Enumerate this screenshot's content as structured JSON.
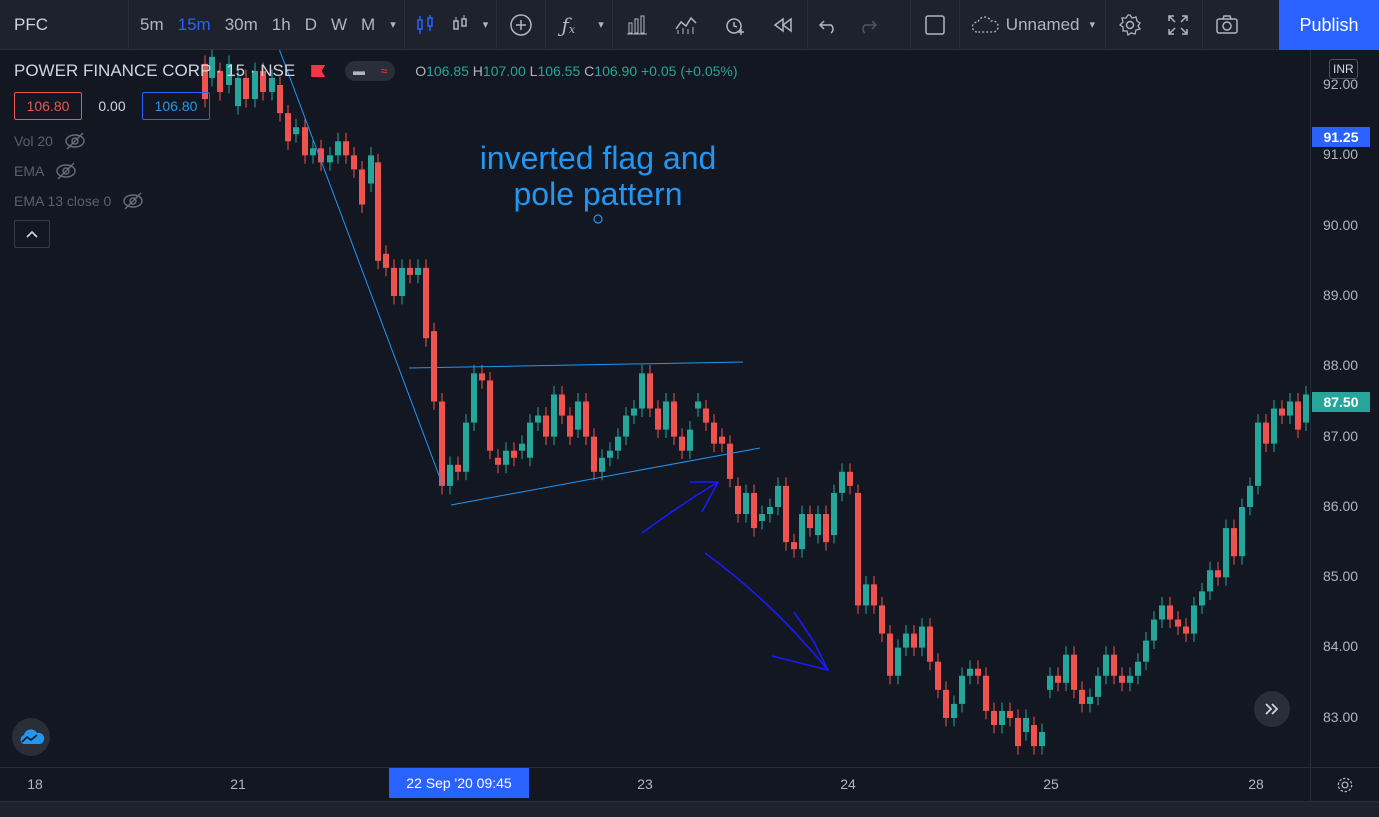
{
  "toolbar": {
    "symbol": "PFC",
    "timeframes": [
      {
        "label": "5m",
        "active": false
      },
      {
        "label": "15m",
        "active": true
      },
      {
        "label": "30m",
        "active": false
      },
      {
        "label": "1h",
        "active": false
      },
      {
        "label": "D",
        "active": false
      },
      {
        "label": "W",
        "active": false
      },
      {
        "label": "M",
        "active": false
      }
    ],
    "layout_name": "Unnamed",
    "publish_label": "Publish",
    "icons": [
      "chevron-down-icon",
      "candles-icon",
      "chevron-down-icon",
      "plus-circle-icon",
      "fx-icon",
      "chevron-down-icon",
      "bar-chart-icon",
      "indicator-icon",
      "alert-clock-icon",
      "replay-icon",
      "undo-icon",
      "redo-icon",
      "square-icon",
      "cloud-icon",
      "chevron-down-icon",
      "gear-icon",
      "fullscreen-icon",
      "camera-icon"
    ]
  },
  "legend": {
    "title": "POWER FINANCE CORP · 15 · NSE",
    "open_label": "O",
    "open": "106.85",
    "high_label": "H",
    "high": "107.00",
    "low_label": "L",
    "low": "106.55",
    "close_label": "C",
    "close": "106.90",
    "change": "+0.05 (+0.05%)",
    "bid": "106.80",
    "spread": "0.00",
    "ask": "106.80",
    "indicators": [
      "Vol 20",
      "EMA",
      "EMA 13 close 0"
    ]
  },
  "annotation": {
    "line1": "inverted flag and",
    "line2": "pole pattern"
  },
  "price_axis": {
    "currency": "INR",
    "labels": [
      "92.00",
      "91.00",
      "90.00",
      "89.00",
      "88.00",
      "87.00",
      "86.00",
      "85.00",
      "84.00",
      "83.00"
    ],
    "badges": [
      {
        "text": "91.25",
        "color": "#2962ff"
      },
      {
        "text": "87.50",
        "color": "#26a69a"
      }
    ]
  },
  "time_axis": {
    "labels": [
      "18",
      "21",
      "23",
      "24",
      "25",
      "28"
    ],
    "crosshair_label": "22 Sep '20   09:45"
  },
  "colors": {
    "up": "#26a69a",
    "down": "#ef5350",
    "drawing": "#2196f3",
    "arrow": "#1a1aff",
    "accent": "#2962ff"
  }
}
